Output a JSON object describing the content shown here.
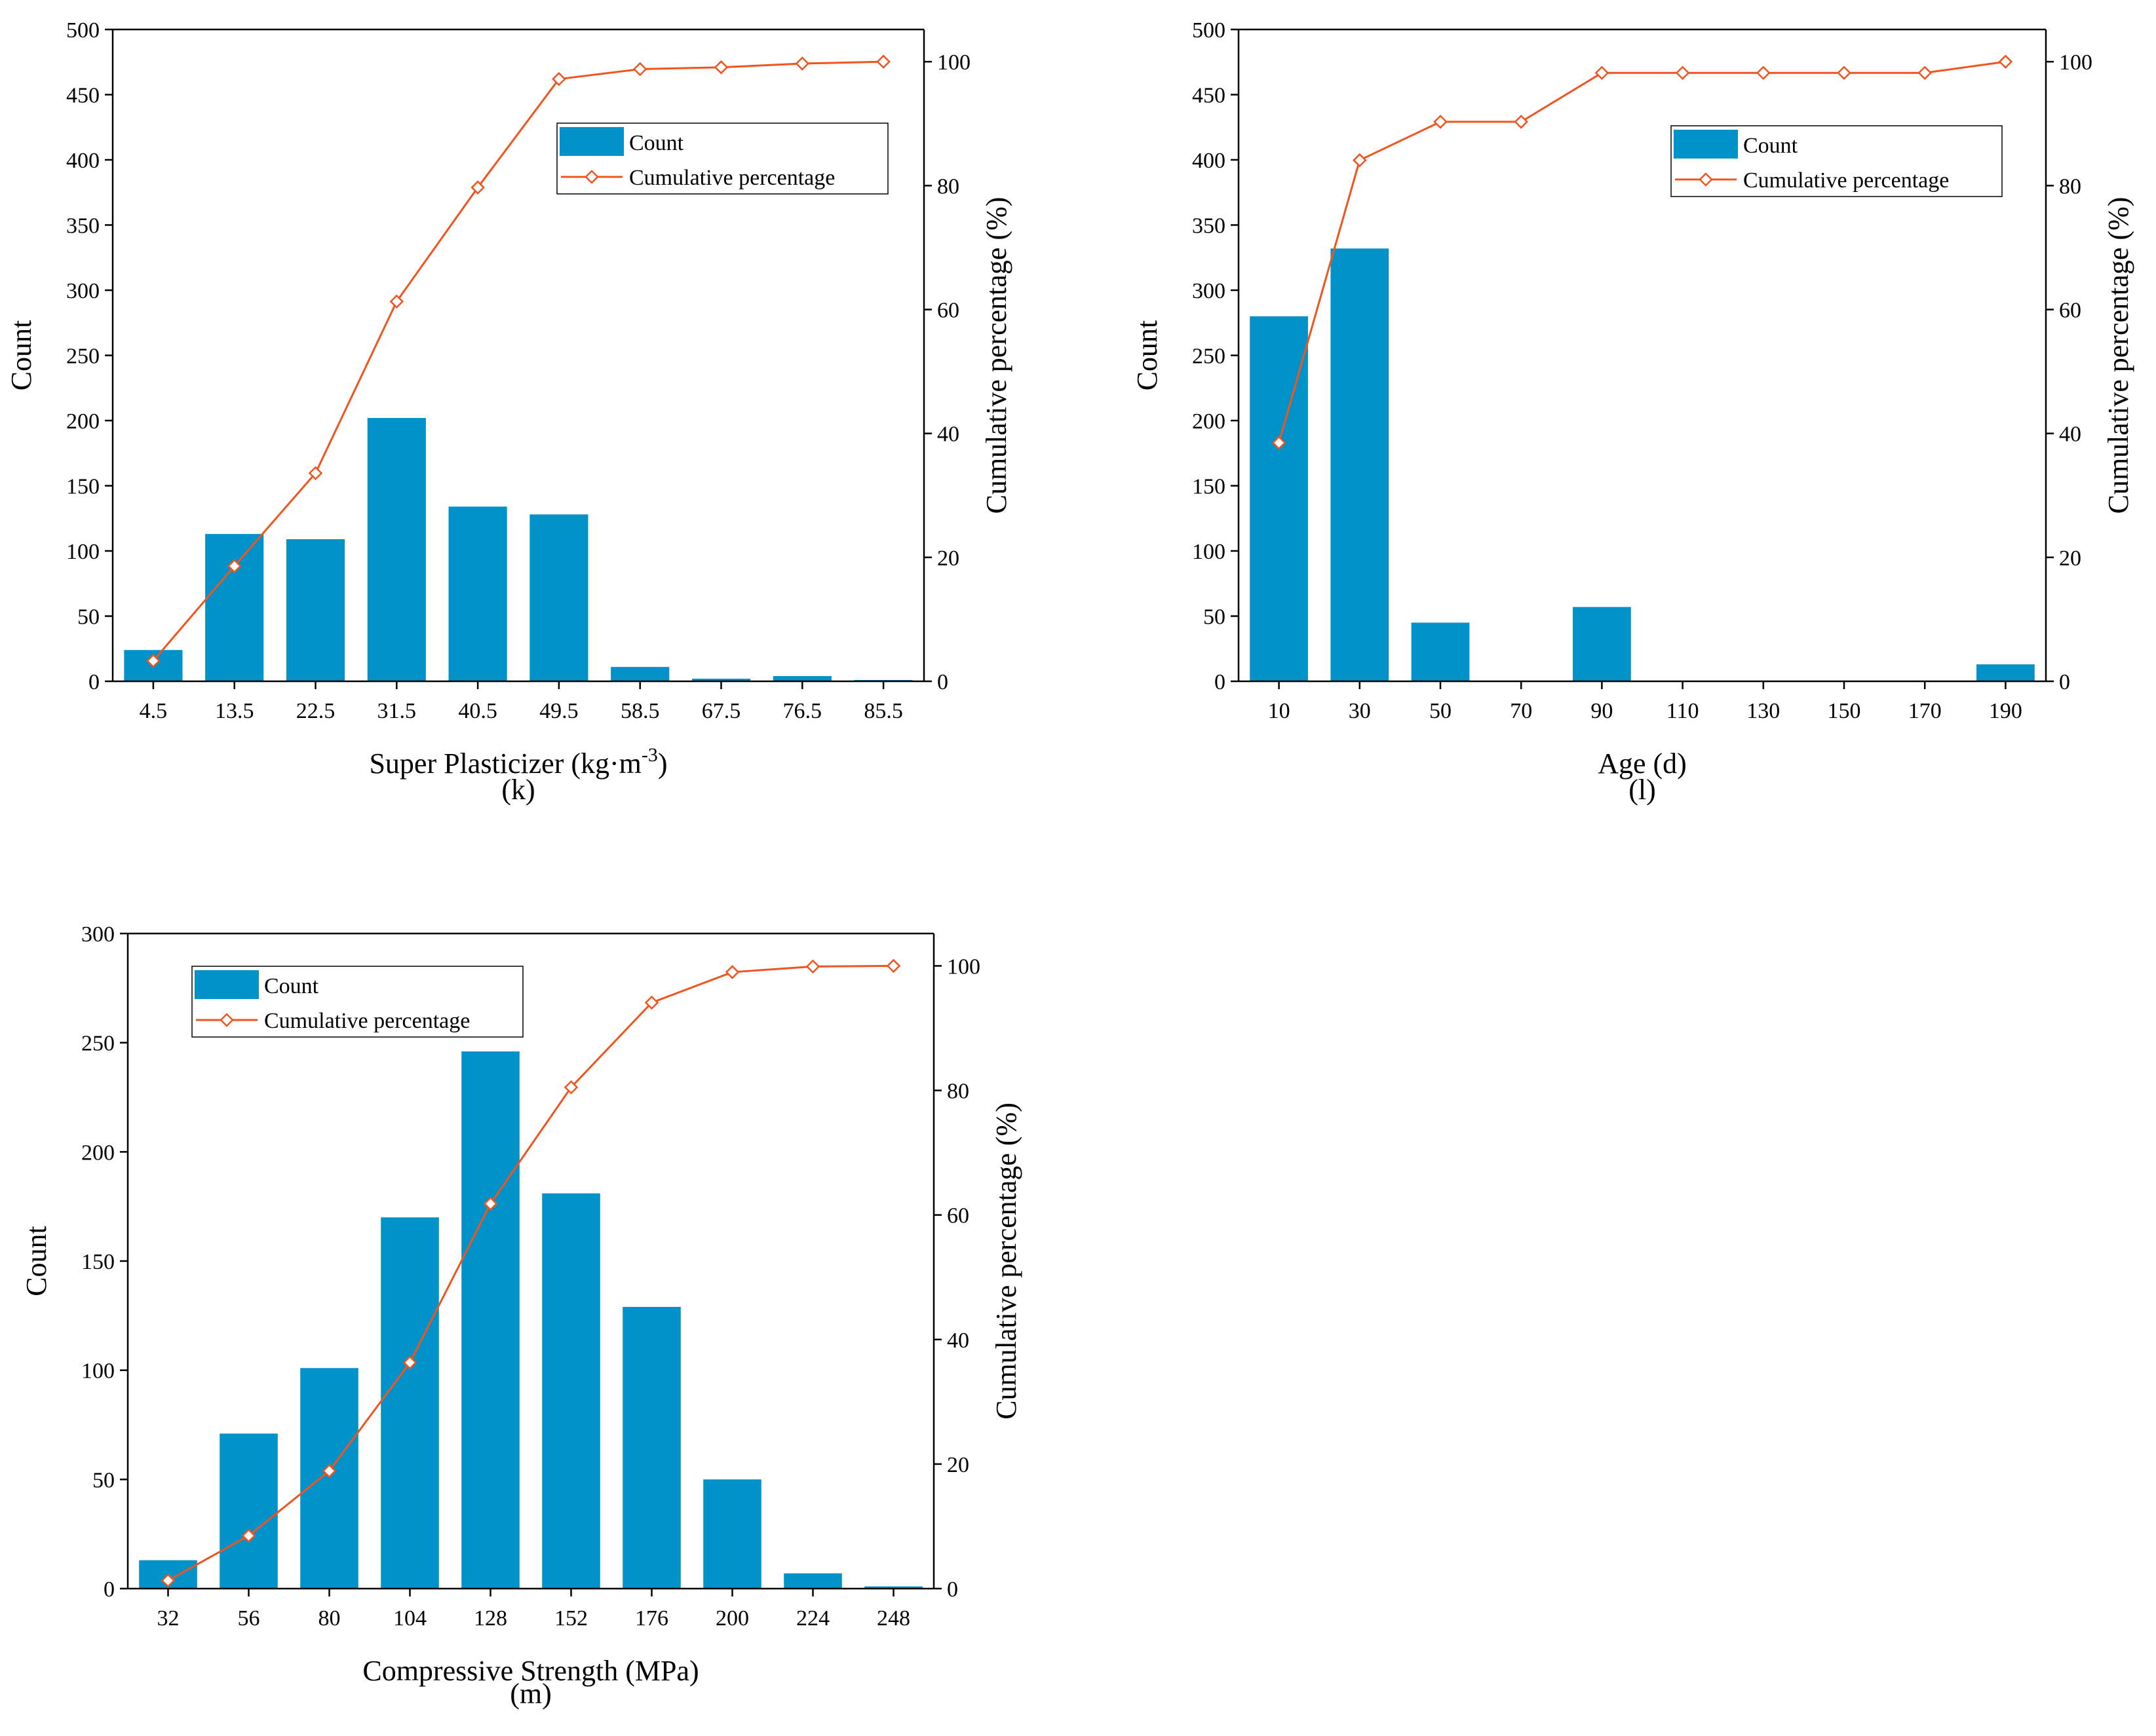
{
  "colors": {
    "bar": "#0092C8",
    "line": "#F0541F"
  },
  "chart_data": [
    {
      "id": "k",
      "type": "bar",
      "caption": "(k)",
      "xlabel": "Super Plasticizer (kg·m",
      "xlabel_sup": "-3",
      "xlabel_end": ")",
      "ylabel": "Count",
      "y2label": "Cumulative percentage (%)",
      "categories": [
        "4.5",
        "13.5",
        "22.5",
        "31.5",
        "40.5",
        "49.5",
        "58.5",
        "67.5",
        "76.5",
        "85.5"
      ],
      "series": [
        {
          "name": "Count",
          "axis": "left",
          "values": [
            24,
            113,
            109,
            202,
            134,
            128,
            11,
            2,
            4,
            1
          ]
        },
        {
          "name": "Cumulative percentage",
          "axis": "right",
          "values": [
            3.3,
            18.6,
            33.6,
            61.3,
            79.7,
            97.2,
            98.8,
            99.1,
            99.7,
            100
          ]
        }
      ],
      "ylim": [
        0,
        500
      ],
      "yticks": [
        "0",
        "50",
        "100",
        "150",
        "200",
        "250",
        "300",
        "350",
        "400",
        "450",
        "500"
      ],
      "y2lim": [
        0,
        105.2
      ],
      "y2ticks": [
        "0",
        "20",
        "40",
        "60",
        "80",
        "100"
      ],
      "legend": {
        "position": "top-right",
        "entries": [
          "Count",
          "Cumulative percentage"
        ]
      }
    },
    {
      "id": "l",
      "type": "bar",
      "caption": "(l)",
      "xlabel": "Age (d)",
      "ylabel": "Count",
      "y2label": "Cumulative percentage (%)",
      "categories": [
        "10",
        "30",
        "50",
        "70",
        "90",
        "110",
        "130",
        "150",
        "170",
        "190"
      ],
      "series": [
        {
          "name": "Count",
          "axis": "left",
          "values": [
            280,
            332,
            45,
            0,
            57,
            0,
            0,
            0,
            0,
            13
          ]
        },
        {
          "name": "Cumulative percentage",
          "axis": "right",
          "values": [
            38.5,
            84.1,
            90.3,
            90.3,
            98.2,
            98.2,
            98.2,
            98.2,
            98.2,
            100
          ]
        }
      ],
      "ylim": [
        0,
        500
      ],
      "yticks": [
        "0",
        "50",
        "100",
        "150",
        "200",
        "250",
        "300",
        "350",
        "400",
        "450",
        "500"
      ],
      "y2lim": [
        0,
        105.2
      ],
      "y2ticks": [
        "0",
        "20",
        "40",
        "60",
        "80",
        "100"
      ],
      "legend": {
        "position": "top-right",
        "entries": [
          "Count",
          "Cumulative percentage"
        ]
      }
    },
    {
      "id": "m",
      "type": "bar",
      "caption": "(m)",
      "xlabel": "Compressive Strength (MPa)",
      "ylabel": "Count",
      "y2label": "Cumulative percentage (%)",
      "categories": [
        "32",
        "56",
        "80",
        "104",
        "128",
        "152",
        "176",
        "200",
        "224",
        "248"
      ],
      "series": [
        {
          "name": "Count",
          "axis": "left",
          "values": [
            13,
            71,
            101,
            170,
            246,
            181,
            129,
            50,
            7,
            1
          ]
        },
        {
          "name": "Cumulative percentage",
          "axis": "right",
          "values": [
            1.3,
            8.5,
            18.9,
            36.3,
            61.8,
            80.5,
            94.1,
            99.0,
            99.9,
            100
          ]
        }
      ],
      "ylim": [
        0,
        300
      ],
      "yticks": [
        "0",
        "50",
        "100",
        "150",
        "200",
        "250",
        "300"
      ],
      "y2lim": [
        0,
        105.2
      ],
      "y2ticks": [
        "0",
        "20",
        "40",
        "60",
        "80",
        "100"
      ],
      "legend": {
        "position": "top-left",
        "entries": [
          "Count",
          "Cumulative percentage"
        ]
      }
    }
  ]
}
